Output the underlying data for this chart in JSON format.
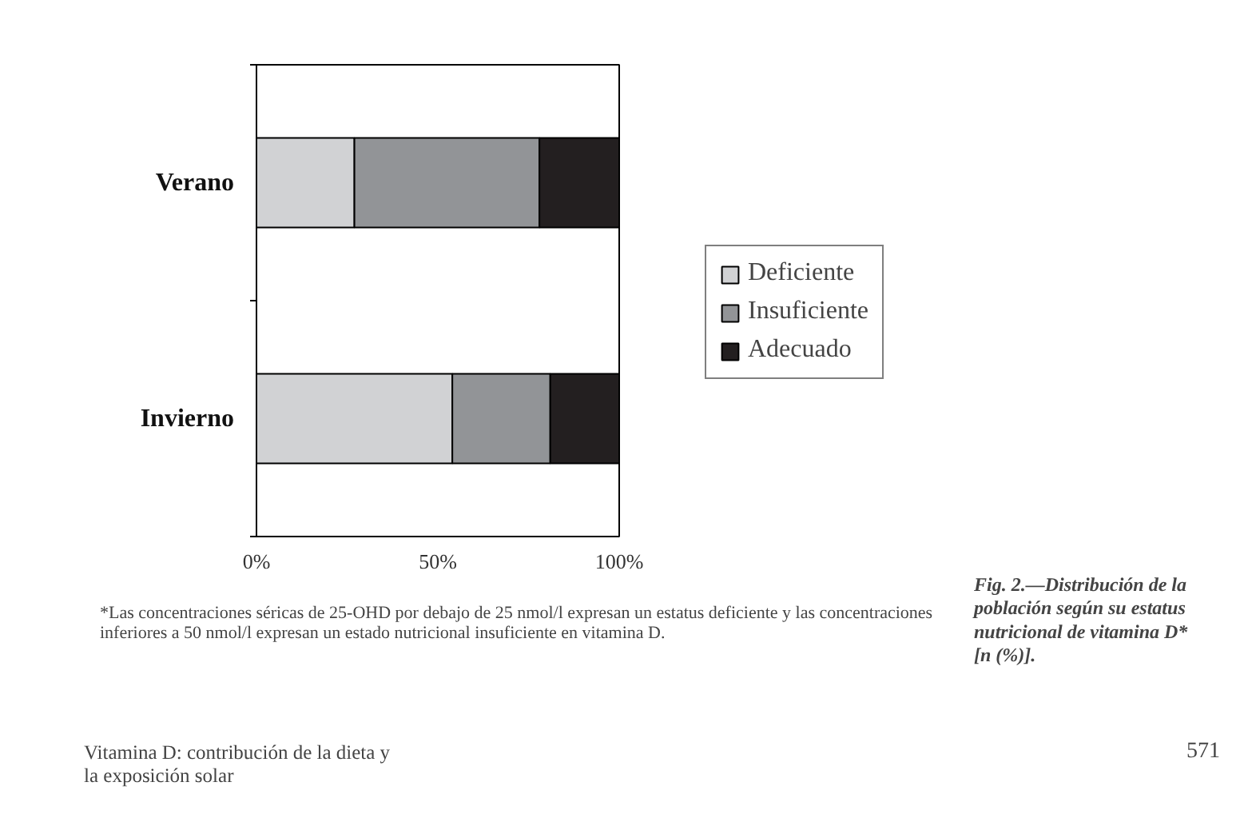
{
  "chart_data": {
    "type": "bar",
    "orientation": "horizontal",
    "stacked": true,
    "title": "Fig. 2.—Distribución de la población según su estatus nutricional de vitamina D* [n (%)].",
    "categories": [
      "Verano",
      "Invierno"
    ],
    "series": [
      {
        "name": "Deficiente",
        "color": "#d1d2d4",
        "values": [
          27,
          54
        ]
      },
      {
        "name": "Insuficiente",
        "color": "#929497",
        "values": [
          51,
          27
        ]
      },
      {
        "name": "Adecuado",
        "color": "#231f20",
        "values": [
          22,
          19
        ]
      }
    ],
    "xlim": [
      0,
      100
    ],
    "xticks": [
      {
        "value": 0,
        "label": "0%"
      },
      {
        "value": 50,
        "label": "50%"
      },
      {
        "value": 100,
        "label": "100%"
      }
    ],
    "grid": false,
    "legend": "right",
    "annotations": [
      "*Las concentraciones séricas de 25-OHD por debajo de 25 nmol/l expresan un estatus deficiente y las concentraciones inferiores a 50 nmol/l expresan un estado nutricional insuficiente en vitamina D.",
      "Vitamina D: contribución de la dieta y la exposición solar",
      "571"
    ]
  }
}
